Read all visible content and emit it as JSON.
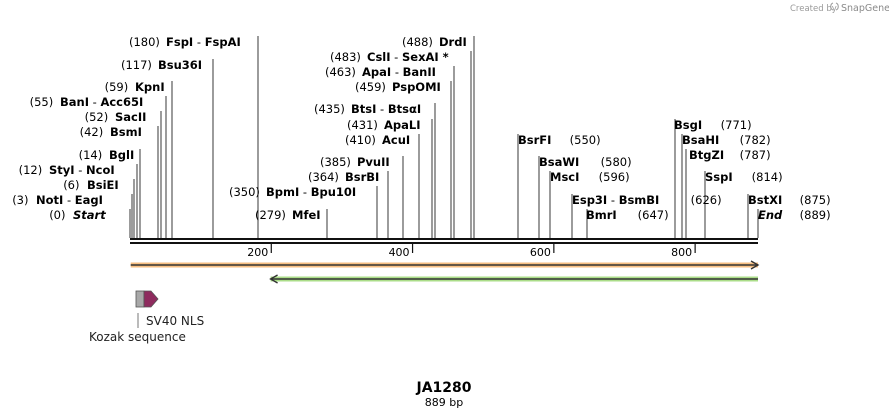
{
  "credit": {
    "prefix": "Created by",
    "brand": "SnapGene"
  },
  "sequence": {
    "name": "JA1280",
    "length_label": "889 bp",
    "length": 889
  },
  "axis": {
    "ticks": [
      "200",
      "400",
      "600",
      "800"
    ]
  },
  "features": [
    {
      "name": "Kozak sequence",
      "start": 7,
      "end": 17,
      "color": "#a8a8a8"
    },
    {
      "name": "SV40 NLS",
      "start": 17,
      "end": 38,
      "color": "#8e2b5e"
    }
  ],
  "orfs": [
    {
      "start": 1,
      "end": 889,
      "direction": "forward",
      "color": "#f08a1c"
    },
    {
      "start": 199,
      "end": 889,
      "direction": "reverse",
      "color": "#67c22a"
    }
  ],
  "sites": [
    {
      "pos": 180,
      "pos_label": "(180)",
      "name": "FspI",
      "sep": " - ",
      "name2": "FspAI"
    },
    {
      "pos": 117,
      "pos_label": "(117)",
      "name": "Bsu36I"
    },
    {
      "pos": 59,
      "pos_label": "(59)",
      "name": "KpnI"
    },
    {
      "pos": 55,
      "pos_label": "(55)",
      "name": "BanI",
      "sep": " - ",
      "name2": "Acc65I"
    },
    {
      "pos": 52,
      "pos_label": "(52)",
      "name": "SacII"
    },
    {
      "pos": 42,
      "pos_label": "(42)",
      "name": "BsmI"
    },
    {
      "pos": 14,
      "pos_label": "(14)",
      "name": "BglI"
    },
    {
      "pos": 12,
      "pos_label": "(12)",
      "name": "StyI",
      "sep": " - ",
      "name2": "NcoI"
    },
    {
      "pos": 6,
      "pos_label": "(6)",
      "name": "BsiEI"
    },
    {
      "pos": 3,
      "pos_label": "(3)",
      "name": "NotI",
      "sep": " - ",
      "name2": "EagI"
    },
    {
      "pos": 0,
      "pos_label": "(0)",
      "name": "Start",
      "italic": true
    },
    {
      "pos": 488,
      "pos_label": "(488)",
      "name": "DrdI"
    },
    {
      "pos": 483,
      "pos_label": "(483)",
      "name": "CslI",
      "sep": " - ",
      "name2": "SexAI *"
    },
    {
      "pos": 463,
      "pos_label": "(463)",
      "name": "ApaI",
      "sep": " - ",
      "name2": "BanII"
    },
    {
      "pos": 459,
      "pos_label": "(459)",
      "name": "PspOMI"
    },
    {
      "pos": 435,
      "pos_label": "(435)",
      "name": "BtsI",
      "sep": " - ",
      "name2": "BtsαI"
    },
    {
      "pos": 431,
      "pos_label": "(431)",
      "name": "ApaLI"
    },
    {
      "pos": 410,
      "pos_label": "(410)",
      "name": "AcuI"
    },
    {
      "pos": 385,
      "pos_label": "(385)",
      "name": "PvuII"
    },
    {
      "pos": 364,
      "pos_label": "(364)",
      "name": "BsrBI"
    },
    {
      "pos": 350,
      "pos_label": "(350)",
      "name": "BpmI",
      "sep": " - ",
      "name2": "Bpu10I"
    },
    {
      "pos": 279,
      "pos_label": "(279)",
      "name": "MfeI"
    },
    {
      "pos": 550,
      "pos_label": "(550)",
      "name": "BsrFI"
    },
    {
      "pos": 580,
      "pos_label": "(580)",
      "name": "BsaWI"
    },
    {
      "pos": 596,
      "pos_label": "(596)",
      "name": "MscI"
    },
    {
      "pos": 626,
      "pos_label": "(626)",
      "name": "Esp3I",
      "sep": " - ",
      "name2": "BsmBI"
    },
    {
      "pos": 647,
      "pos_label": "(647)",
      "name": "BmrI"
    },
    {
      "pos": 771,
      "pos_label": "(771)",
      "name": "BsgI"
    },
    {
      "pos": 782,
      "pos_label": "(782)",
      "name": "BsaHI"
    },
    {
      "pos": 787,
      "pos_label": "(787)",
      "name": "BtgZI"
    },
    {
      "pos": 814,
      "pos_label": "(814)",
      "name": "SspI"
    },
    {
      "pos": 875,
      "pos_label": "(875)",
      "name": "BstXI"
    },
    {
      "pos": 889,
      "pos_label": "(889)",
      "name": "End",
      "italic": true
    }
  ]
}
